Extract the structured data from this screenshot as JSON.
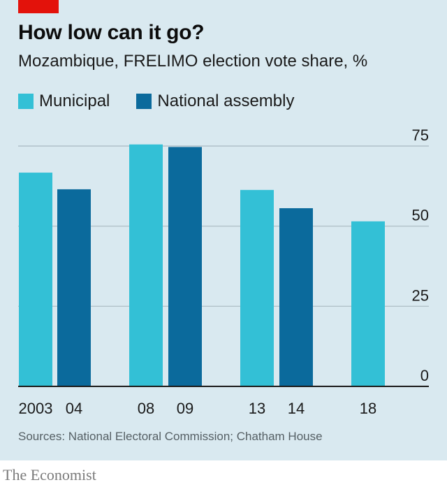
{
  "header": {
    "title": "How low can it go?",
    "subtitle": "Mozambique, FRELIMO election vote share, %"
  },
  "legend": {
    "items": [
      {
        "label": "Municipal",
        "color": "#33c0d6"
      },
      {
        "label": "National assembly",
        "color": "#0b6a9c"
      }
    ]
  },
  "chart_data": {
    "type": "bar",
    "title": "How low can it go?",
    "subtitle": "Mozambique, FRELIMO election vote share, %",
    "xlabel": "",
    "ylabel": "",
    "ylim": [
      0,
      75
    ],
    "yticks": [
      "0",
      "25",
      "50",
      "75"
    ],
    "ytick_values": [
      0,
      25,
      50,
      75
    ],
    "grid": true,
    "legend_position": "top-left",
    "series": [
      {
        "name": "Municipal",
        "color": "#33c0d6"
      },
      {
        "name": "National assembly",
        "color": "#0b6a9c"
      }
    ],
    "bars": [
      {
        "label": "2003",
        "series": "Municipal",
        "value": 66.7
      },
      {
        "label": "04",
        "series": "National assembly",
        "value": 61.5
      },
      {
        "label": "08",
        "series": "Municipal",
        "value": 75.5
      },
      {
        "label": "09",
        "series": "National assembly",
        "value": 74.7
      },
      {
        "label": "13",
        "series": "Municipal",
        "value": 61.3
      },
      {
        "label": "14",
        "series": "National assembly",
        "value": 55.6
      },
      {
        "label": "18",
        "series": "Municipal",
        "value": 51.5
      }
    ]
  },
  "footer": {
    "source": "Sources: National Electoral Commission; Chatham House",
    "brand": "The Economist"
  },
  "colors": {
    "panel_background": "#d9e9f0",
    "accent_red": "#e3120b",
    "gridline": "#a9b9c1",
    "axis": "#1a1a1a"
  }
}
